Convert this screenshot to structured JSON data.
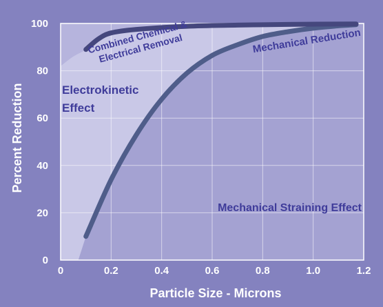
{
  "chart_data": {
    "type": "line",
    "title": "",
    "xlabel": "Particle Size - Microns",
    "ylabel": "Percent Reduction",
    "xlim": [
      0,
      1.2
    ],
    "ylim": [
      0,
      100
    ],
    "x_ticks": [
      "0",
      "0.2",
      "0.4",
      "0.6",
      "0.8",
      "1.0",
      "1.2"
    ],
    "y_ticks": [
      "0",
      "20",
      "40",
      "60",
      "80",
      "100"
    ],
    "grid": true,
    "series": [
      {
        "name": "Mechanical Reduction",
        "color": "#4f5d8a",
        "points": [
          [
            0.1,
            10
          ],
          [
            0.2,
            34
          ],
          [
            0.3,
            53
          ],
          [
            0.4,
            68
          ],
          [
            0.5,
            79
          ],
          [
            0.6,
            86.5
          ],
          [
            0.7,
            91
          ],
          [
            0.8,
            94.5
          ],
          [
            0.9,
            96.5
          ],
          [
            1.0,
            98
          ],
          [
            1.1,
            99
          ],
          [
            1.17,
            99.5
          ]
        ]
      },
      {
        "name": "Combined Chemical & Electrical Removal",
        "color": "#45477d",
        "points": [
          [
            0.1,
            89
          ],
          [
            0.15,
            93.5
          ],
          [
            0.2,
            96
          ],
          [
            0.3,
            97.5
          ],
          [
            0.5,
            98.8
          ],
          [
            0.7,
            99.3
          ],
          [
            0.9,
            99.6
          ],
          [
            1.17,
            99.8
          ]
        ]
      }
    ],
    "regions": [
      {
        "label": "Electrokinetic Effect",
        "color": "#c7c5e6"
      },
      {
        "label": "Mechanical Straining Effect",
        "color": "#a4a2d2"
      }
    ],
    "annotations": {
      "combined_line1": "Combined Chemical &",
      "combined_line2": "Electrical Removal",
      "mechanical_reduction": "Mechanical Reduction",
      "electrokinetic_line1": "Electrokinetic",
      "electrokinetic_line2": "Effect",
      "mechanical_straining": "Mechanical Straining Effect"
    }
  }
}
